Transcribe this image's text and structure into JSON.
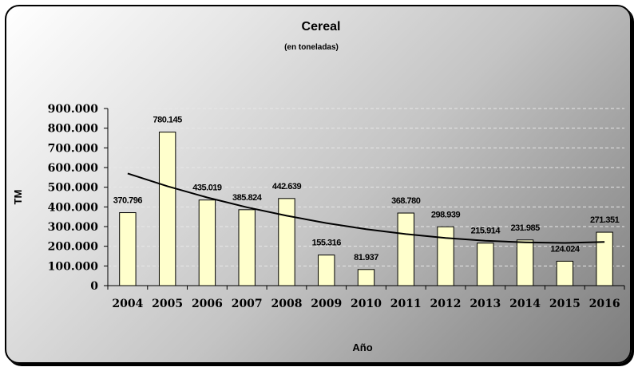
{
  "chart_data": {
    "type": "bar",
    "title": "Cereal",
    "subtitle": "(en toneladas)",
    "xlabel": "Año",
    "ylabel": "TM",
    "categories": [
      "2004",
      "2005",
      "2006",
      "2007",
      "2008",
      "2009",
      "2010",
      "2011",
      "2012",
      "2013",
      "2014",
      "2015",
      "2016"
    ],
    "values": [
      370796,
      780145,
      435019,
      385824,
      442639,
      155316,
      81937,
      368780,
      298939,
      215914,
      231985,
      124024,
      271351
    ],
    "data_labels": [
      "370.796",
      "780.145",
      "435.019",
      "385.824",
      "442.639",
      "155.316",
      "81.937",
      "368.780",
      "298.939",
      "215.914",
      "231.985",
      "124.024",
      "271.351"
    ],
    "ylim": [
      0,
      900000
    ],
    "yticks": [
      0,
      100000,
      200000,
      300000,
      400000,
      500000,
      600000,
      700000,
      800000,
      900000
    ],
    "ytick_labels": [
      "0",
      "100.000",
      "200.000",
      "300.000",
      "400.000",
      "500.000",
      "600.000",
      "700.000",
      "800.000",
      "900.000"
    ],
    "grid": true,
    "legend": "none",
    "trendline": {
      "type": "polynomial",
      "values": [
        570000,
        505000,
        448000,
        398000,
        355000,
        318000,
        287000,
        262000,
        242000,
        228000,
        220000,
        217000,
        222000
      ]
    },
    "colors": {
      "bar_fill": "#FFFFCC",
      "bar_stroke": "#000000",
      "trendline": "#000000",
      "grid": "#e8e8e8"
    }
  }
}
